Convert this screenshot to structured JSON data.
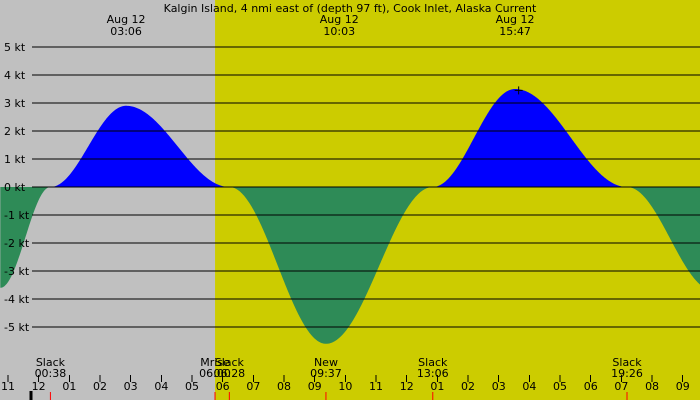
{
  "chart_data": {
    "type": "area",
    "title": "Kalgin Island, 4 nmi east of (depth 97 ft), Cook Inlet, Alaska Current",
    "xlabel": "",
    "ylabel": "",
    "x_unit": "hour",
    "xlim": [
      -1.0,
      22.25
    ],
    "ylim": [
      -6.2,
      5.3
    ],
    "grid": true,
    "y_ticks": [
      {
        "value": 5,
        "label": "5 kt"
      },
      {
        "value": 4,
        "label": "4 kt"
      },
      {
        "value": 3,
        "label": "3 kt"
      },
      {
        "value": 2,
        "label": "2 kt"
      },
      {
        "value": 1,
        "label": "1 kt"
      },
      {
        "value": 0,
        "label": "0 kt"
      },
      {
        "value": -1,
        "label": "-1 kt"
      },
      {
        "value": -2,
        "label": "-2 kt"
      },
      {
        "value": -3,
        "label": "-3 kt"
      },
      {
        "value": -4,
        "label": "-4 kt"
      },
      {
        "value": -5,
        "label": "-5 kt"
      }
    ],
    "x_ticks": [
      {
        "value": -0.75,
        "label": "11"
      },
      {
        "value": 0.25,
        "label": "12"
      },
      {
        "value": 1.25,
        "label": "01"
      },
      {
        "value": 2.25,
        "label": "02"
      },
      {
        "value": 3.25,
        "label": "03"
      },
      {
        "value": 4.25,
        "label": "04"
      },
      {
        "value": 5.25,
        "label": "05"
      },
      {
        "value": 6.25,
        "label": "06"
      },
      {
        "value": 7.25,
        "label": "07"
      },
      {
        "value": 8.25,
        "label": "08"
      },
      {
        "value": 9.25,
        "label": "09"
      },
      {
        "value": 10.25,
        "label": "10"
      },
      {
        "value": 11.25,
        "label": "11"
      },
      {
        "value": 12.25,
        "label": "12"
      },
      {
        "value": 13.25,
        "label": "01"
      },
      {
        "value": 14.25,
        "label": "02"
      },
      {
        "value": 15.25,
        "label": "03"
      },
      {
        "value": 16.25,
        "label": "04"
      },
      {
        "value": 17.25,
        "label": "05"
      },
      {
        "value": 18.25,
        "label": "06"
      },
      {
        "value": 19.25,
        "label": "07"
      },
      {
        "value": 20.25,
        "label": "08"
      },
      {
        "value": 21.25,
        "label": "09"
      }
    ],
    "background": {
      "night_color": "#c0c0c0",
      "day_color": "#cccc00",
      "day_start": 6.0
    },
    "colors": {
      "flood": "#0000ff",
      "ebb": "#2e8b57",
      "grid": "#000000",
      "midnight_marker": "#000000",
      "event_marker": "#ff0000"
    },
    "curve": {
      "knots": [
        {
          "x": -1.0,
          "y": -3.6
        },
        {
          "x": 0.633,
          "y": 0
        },
        {
          "x": 3.1,
          "y": 2.9
        },
        {
          "x": 6.467,
          "y": 0
        },
        {
          "x": 9.617,
          "y": -5.6
        },
        {
          "x": 13.1,
          "y": 0
        },
        {
          "x": 15.783,
          "y": 3.5
        },
        {
          "x": 19.433,
          "y": 0
        },
        {
          "x": 22.25,
          "y": -3.7
        }
      ]
    },
    "peaks": [
      {
        "x": 3.1,
        "date": "Aug 12",
        "time": "03:06"
      },
      {
        "x": 10.05,
        "date": "Aug 12",
        "time": "10:03"
      },
      {
        "x": 15.783,
        "date": "Aug 12",
        "time": "15:47"
      }
    ],
    "events": [
      {
        "x": 0.633,
        "name": "Slack",
        "time": "00:38"
      },
      {
        "x": 6.0,
        "name": "Mrise",
        "time": "06:00"
      },
      {
        "x": 6.467,
        "name": "Slack",
        "time": "06:28"
      },
      {
        "x": 9.617,
        "name": "New",
        "time": "09:37"
      },
      {
        "x": 13.1,
        "name": "Slack",
        "time": "13:06"
      },
      {
        "x": 19.433,
        "name": "Slack",
        "time": "19:26"
      }
    ],
    "midnight_x": 0.0,
    "cursor": {
      "x": 15.9,
      "y": 3.45
    }
  }
}
